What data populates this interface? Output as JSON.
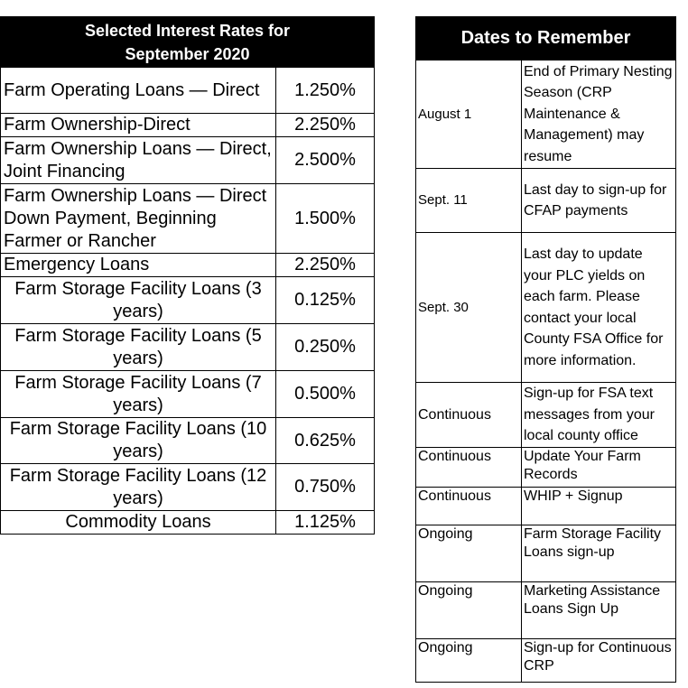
{
  "rates_table": {
    "title": "Selected Interest Rates for September 2020",
    "rows": [
      {
        "label": "Farm Operating Loans — Direct",
        "rate": "1.250%"
      },
      {
        "label": "Farm Ownership-Direct",
        "rate": "2.250%"
      },
      {
        "label": "Farm Ownership Loans — Direct, Joint Financing",
        "rate": "2.500%"
      },
      {
        "label": "Farm Ownership Loans — Direct Down Payment, Beginning Farmer or Rancher",
        "rate": "1.500%"
      },
      {
        "label": "Emergency Loans",
        "rate": "2.250%"
      },
      {
        "label": "Farm Storage Facility Loans (3 years)",
        "rate": "0.125%"
      },
      {
        "label": "Farm Storage Facility Loans (5 years)",
        "rate": "0.250%"
      },
      {
        "label": "Farm Storage Facility Loans (7 years)",
        "rate": "0.500%"
      },
      {
        "label": "Farm Storage Facility Loans (10 years)",
        "rate": "0.625%"
      },
      {
        "label": "Farm Storage Facility Loans (12 years)",
        "rate": "0.750%"
      },
      {
        "label": "Commodity Loans",
        "rate": "1.125%"
      }
    ]
  },
  "dates_table": {
    "title": "Dates to Remember",
    "rows": [
      {
        "date": "August 1",
        "desc": "End of Primary Nesting Season (CRP Maintenance & Management) may resume"
      },
      {
        "date": "Sept. 11",
        "desc": "Last day to sign-up for CFAP payments"
      },
      {
        "date": "Sept. 30",
        "desc": "Last day to update your PLC yields on each farm.  Please contact your local County FSA Office for more information."
      },
      {
        "date": "Continuous",
        "desc": "Sign-up for FSA text messages from your local county office"
      },
      {
        "date": "Continuous",
        "desc": "Update Your Farm Records"
      },
      {
        "date": "Continuous",
        "desc": "WHIP + Signup"
      },
      {
        "date": "Ongoing",
        "desc": "Farm Storage Facility Loans sign-up"
      },
      {
        "date": "Ongoing",
        "desc": "Marketing Assistance Loans Sign Up"
      },
      {
        "date": "Ongoing",
        "desc": "Sign-up for Continuous CRP"
      }
    ]
  }
}
